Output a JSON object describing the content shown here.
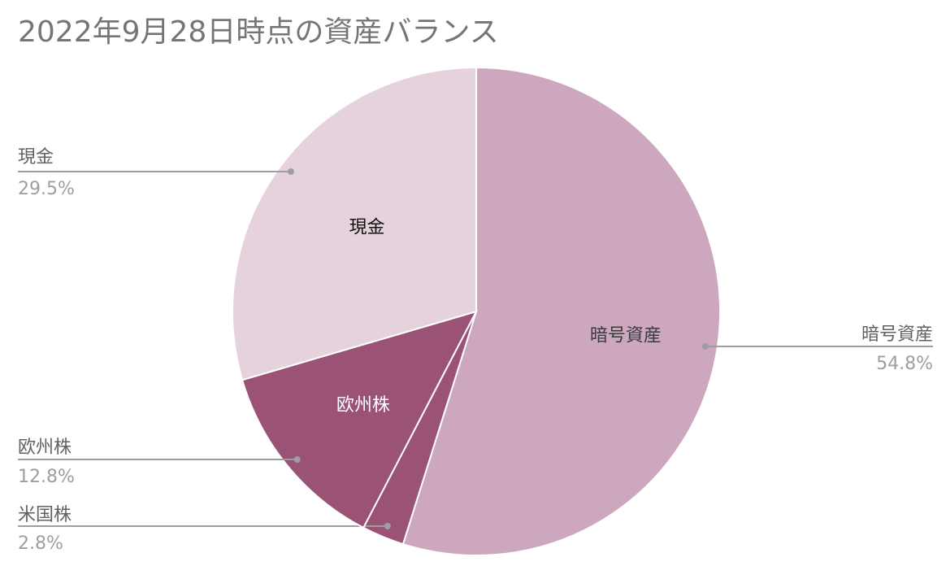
{
  "chart_data": {
    "type": "pie",
    "title": "2022年9月28日時点の資産バランス",
    "slices": [
      {
        "label": "暗号資産",
        "value": 54.8,
        "display": "54.8%",
        "color": "#cda7bd",
        "inner_label_color": "#3a3a3a"
      },
      {
        "label": "米国株",
        "value": 2.8,
        "display": "2.8%",
        "color": "#9a5275",
        "inner_label_color": null
      },
      {
        "label": "欧州株",
        "value": 12.8,
        "display": "12.8%",
        "color": "#9a5275",
        "inner_label_color": "#ffffff"
      },
      {
        "label": "現金",
        "value": 29.5,
        "display": "29.5%",
        "color": "#e6d2dc",
        "inner_label_color": "#111111"
      }
    ],
    "start_angle_deg": 0,
    "direction": "clockwise",
    "legend": "none",
    "outside_labels": true
  },
  "colors": {
    "title": "#757575",
    "outside_label": "#616161",
    "outside_percent": "#9e9e9e",
    "leader_line": "#9e9e9e",
    "slice_border": "#ffffff"
  }
}
